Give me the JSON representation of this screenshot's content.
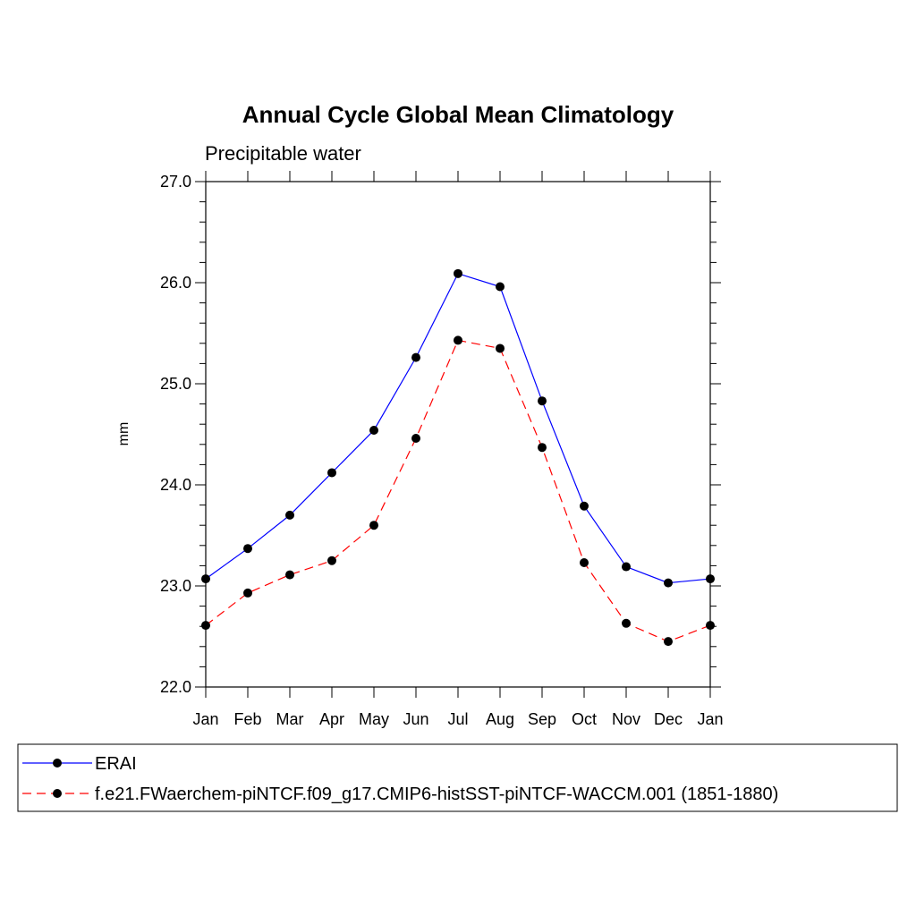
{
  "chart_data": {
    "type": "line",
    "title": "Annual Cycle Global Mean Climatology",
    "subtitle": "Precipitable water",
    "xlabel": "",
    "ylabel": "mm",
    "categories": [
      "Jan",
      "Feb",
      "Mar",
      "Apr",
      "May",
      "Jun",
      "Jul",
      "Aug",
      "Sep",
      "Oct",
      "Nov",
      "Dec",
      "Jan"
    ],
    "ylim": [
      22.0,
      27.0
    ],
    "yticks": [
      "22.0",
      "23.0",
      "24.0",
      "25.0",
      "26.0",
      "27.0"
    ],
    "grid": false,
    "legend_position": "bottom",
    "series": [
      {
        "name": "ERAI",
        "color": "#0000ff",
        "line_style": "solid",
        "marker": "filled-circle",
        "values": [
          23.07,
          23.37,
          23.7,
          24.12,
          24.54,
          25.26,
          26.09,
          25.96,
          24.83,
          23.79,
          23.19,
          23.03,
          23.07
        ]
      },
      {
        "name": "f.e21.FWaerchem-piNTCF.f09_g17.CMIP6-histSST-piNTCF-WACCM.001 (1851-1880)",
        "color": "#ff0000",
        "line_style": "dashed",
        "marker": "filled-circle",
        "values": [
          22.61,
          22.93,
          23.11,
          23.25,
          23.6,
          24.46,
          25.43,
          25.35,
          24.37,
          23.23,
          22.63,
          22.45,
          22.61
        ]
      }
    ]
  }
}
